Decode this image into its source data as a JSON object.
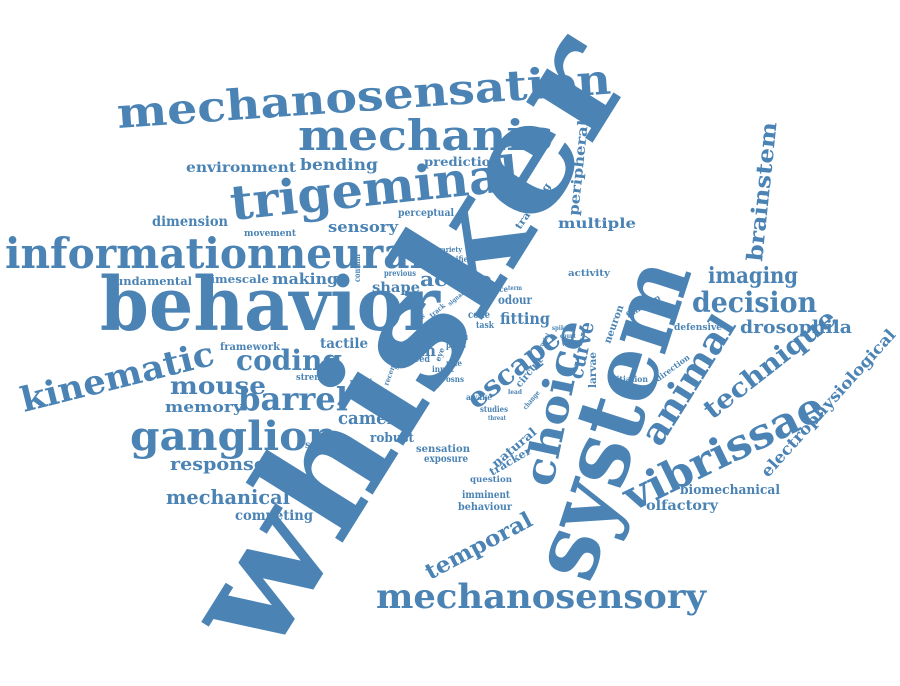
{
  "color": "#4a83b4",
  "words": [
    "whisker",
    "system",
    "behavior",
    "mechanosensation",
    "mechanic",
    "trigeminal",
    "informationneural",
    "kinematic",
    "ganglion",
    "barrel",
    "coding",
    "mouse",
    "memory",
    "choice",
    "escape",
    "animal",
    "vibrissae",
    "technique",
    "brainstem",
    "imaging",
    "decision",
    "drosophila",
    "electrophysiological",
    "mechanosensory",
    "temporal",
    "mechanical",
    "competing",
    "response",
    "camera",
    "robust",
    "sensation",
    "exposure",
    "natural",
    "tracker",
    "question",
    "imminent",
    "behaviour",
    "studies",
    "sensing",
    "olfactory",
    "biomechanical",
    "defensive",
    "initiation",
    "direction",
    "activity",
    "function",
    "larvae",
    "neuron",
    "curve",
    "circuit",
    "fitting",
    "odour",
    "code",
    "task",
    "force",
    "brain",
    "tactile",
    "framework",
    "strength",
    "related",
    "recent",
    "study",
    "speed",
    "input",
    "osns",
    "awake",
    "change",
    "fundamental",
    "timescale",
    "making",
    "shape",
    "active",
    "previous",
    "classifier",
    "variety",
    "contain",
    "movement",
    "dimension",
    "sensory",
    "perceptual",
    "environment",
    "bending",
    "prediction",
    "peripheral",
    "tracking",
    "multiple",
    "role",
    "pwas",
    "eye",
    "spike",
    "crucial",
    "count",
    "track",
    "signal",
    "arrow",
    "tool",
    "cell",
    "valence",
    "term",
    "threat",
    "lead"
  ]
}
